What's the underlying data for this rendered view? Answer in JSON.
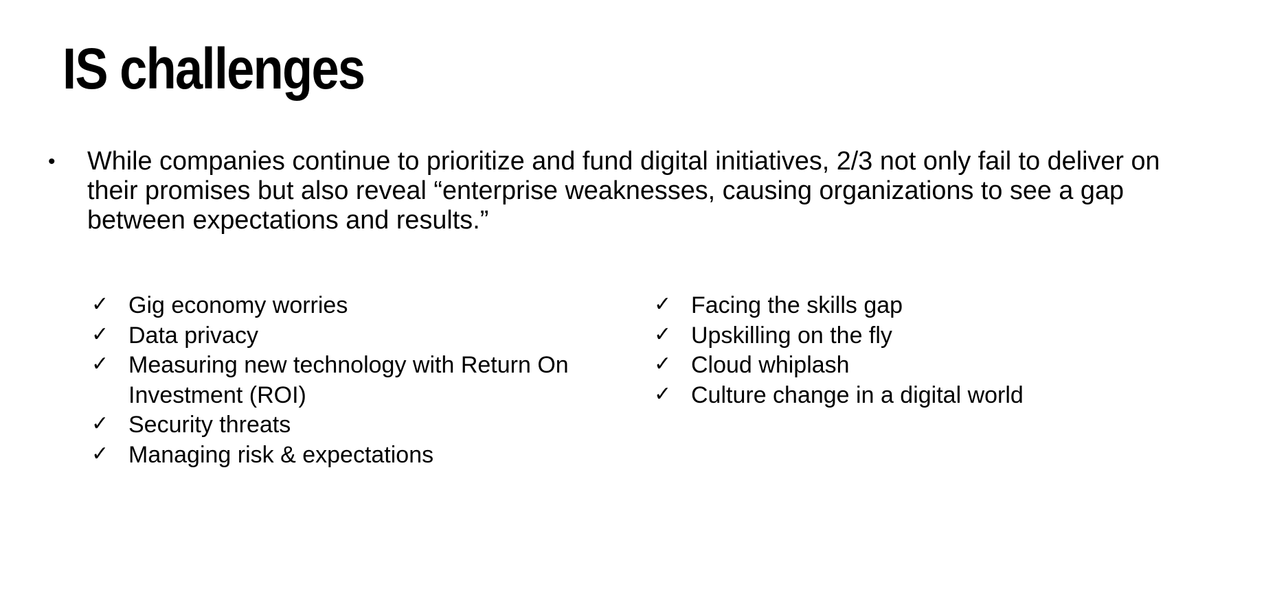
{
  "slide": {
    "title": "IS challenges",
    "main_bullet": {
      "marker": "•",
      "text": "While companies continue to prioritize and fund digital initiatives, 2/3 not only fail to deliver on their promises but also reveal “enterprise weaknesses, causing organizations to see a gap between expectations and results.”"
    },
    "check_marker": "✓",
    "left_list": [
      "Gig economy worries",
      "Data privacy",
      "Measuring new technology with Return On Investment (ROI)",
      "Security threats",
      "Managing risk & expectations"
    ],
    "right_list": [
      "Facing the skills gap",
      "Upskilling on the fly",
      "Cloud whiplash",
      "Culture change in a digital world"
    ]
  }
}
